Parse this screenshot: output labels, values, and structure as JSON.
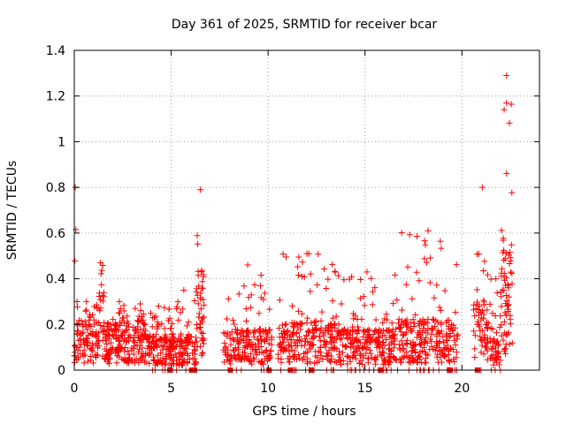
{
  "chart_data": {
    "type": "scatter",
    "title": "Day 361 of 2025, SRMTID for receiver bcar",
    "xlabel": "GPS time / hours",
    "ylabel": "SRMTID / TECUs",
    "xlim": [
      0,
      24
    ],
    "ylim": [
      0,
      1.4
    ],
    "x_ticks": [
      0,
      5,
      10,
      15,
      20
    ],
    "x_tick_labels": [
      "0",
      "5",
      "10",
      "15",
      "20"
    ],
    "y_ticks": [
      0,
      0.2,
      0.4,
      0.6,
      0.8,
      1.0,
      1.2,
      1.4
    ],
    "y_tick_labels": [
      "0",
      "0.2",
      "0.4",
      "0.6",
      "0.8",
      "1",
      "1.2",
      "1.4"
    ],
    "grid": true,
    "marker": "plus",
    "color": "#ff0000",
    "series": [
      {
        "name": "SRMTID",
        "segments": [
          {
            "start": 0.0,
            "end": 0.1,
            "base": 0.12,
            "peak": 0.8,
            "n": 8,
            "zero_frac": 0
          },
          {
            "start": 0.1,
            "end": 1.15,
            "base": 0.15,
            "peak": 0.3,
            "n": 85,
            "zero_frac": 0
          },
          {
            "start": 1.15,
            "end": 1.55,
            "base": 0.25,
            "peak": 0.47,
            "n": 35,
            "zero_frac": 0
          },
          {
            "start": 1.55,
            "end": 3.1,
            "base": 0.14,
            "peak": 0.3,
            "n": 140,
            "zero_frac": 0
          },
          {
            "start": 3.1,
            "end": 3.7,
            "base": 0.15,
            "peak": 0.29,
            "n": 55,
            "zero_frac": 0
          },
          {
            "start": 3.7,
            "end": 5.0,
            "base": 0.1,
            "peak": 0.28,
            "n": 120,
            "zero_frac": 0.04
          },
          {
            "start": 5.0,
            "end": 6.3,
            "base": 0.1,
            "peak": 0.35,
            "n": 110,
            "zero_frac": 0.05
          },
          {
            "start": 6.3,
            "end": 6.7,
            "base": 0.3,
            "peak": 0.79,
            "n": 45,
            "zero_frac": 0
          },
          {
            "start": 7.7,
            "end": 10.2,
            "base": 0.12,
            "peak": 0.46,
            "n": 190,
            "zero_frac": 0.05
          },
          {
            "start": 10.5,
            "end": 13.5,
            "base": 0.14,
            "peak": 0.51,
            "n": 240,
            "zero_frac": 0.03
          },
          {
            "start": 13.5,
            "end": 16.7,
            "base": 0.12,
            "peak": 0.43,
            "n": 260,
            "zero_frac": 0.04
          },
          {
            "start": 16.7,
            "end": 19.8,
            "base": 0.15,
            "peak": 0.61,
            "n": 250,
            "zero_frac": 0.05
          },
          {
            "start": 20.6,
            "end": 21.5,
            "base": 0.2,
            "peak": 0.8,
            "n": 70,
            "zero_frac": 0.06
          },
          {
            "start": 21.5,
            "end": 22.0,
            "base": 0.1,
            "peak": 0.4,
            "n": 40,
            "zero_frac": 0.03
          },
          {
            "start": 22.0,
            "end": 22.6,
            "base": 0.35,
            "peak": 1.29,
            "n": 70,
            "zero_frac": 0
          }
        ],
        "zero_markers_x": [
          4.95,
          6.05,
          6.2,
          8.05,
          10.05,
          11.15,
          12.25,
          15.8,
          19.4,
          20.8
        ]
      }
    ]
  }
}
